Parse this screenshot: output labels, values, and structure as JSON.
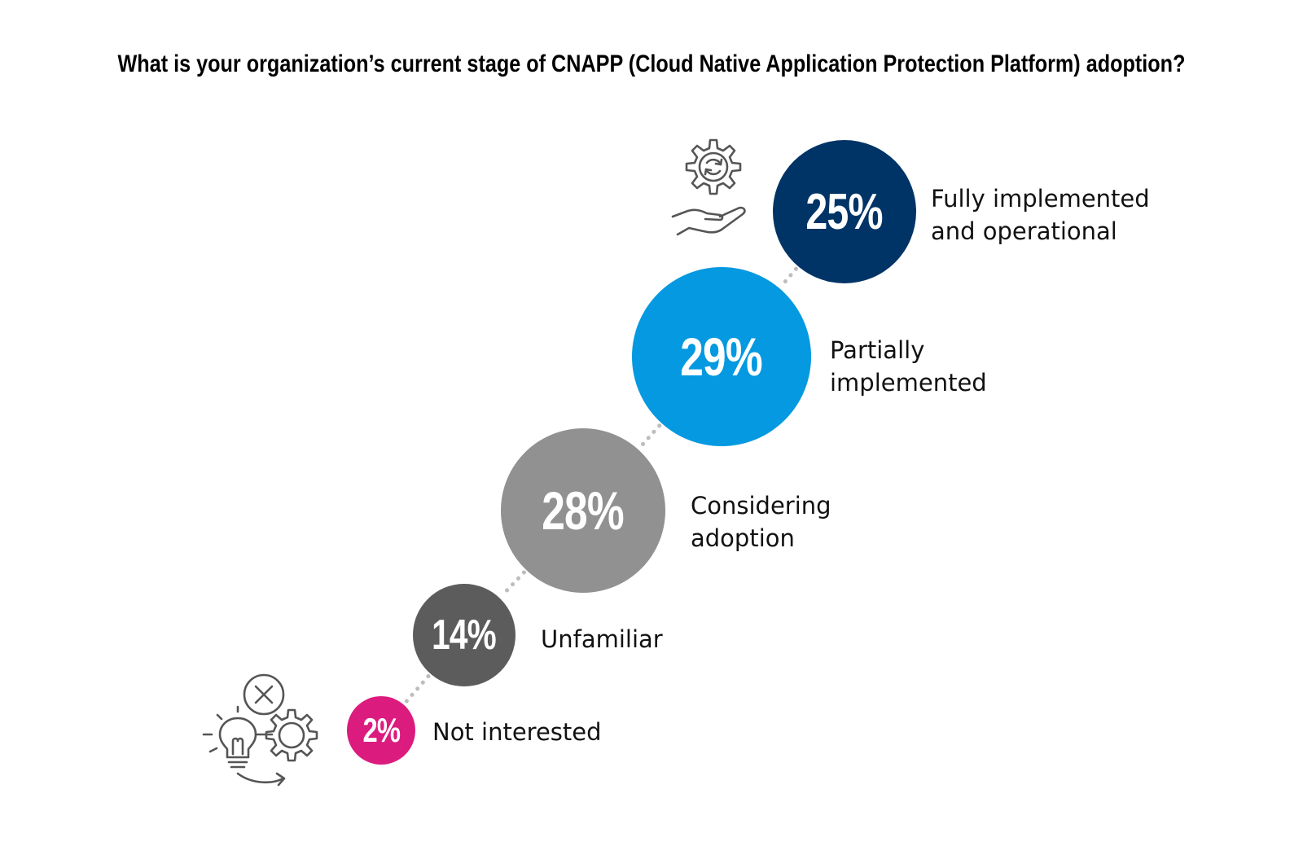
{
  "title": "What is your organization’s current stage of CNAPP (Cloud Native Application Protection Platform) adoption?",
  "chart_data": {
    "type": "bubble-steps",
    "title": "What is your organization’s current stage of CNAPP (Cloud Native Application Protection Platform) adoption?",
    "unit": "%",
    "categories": [
      "Fully implemented and operational",
      "Partially implemented",
      "Considering adoption",
      "Unfamiliar",
      "Not interested"
    ],
    "values": [
      25,
      29,
      28,
      14,
      2
    ],
    "items": [
      {
        "value": 25,
        "display": "25%",
        "label_lines": [
          "Fully implemented",
          "and operational"
        ],
        "color": "#003466"
      },
      {
        "value": 29,
        "display": "29%",
        "label_lines": [
          "Partially",
          "implemented"
        ],
        "color": "#0499e0"
      },
      {
        "value": 28,
        "display": "28%",
        "label_lines": [
          "Considering",
          "adoption"
        ],
        "color": "#919191"
      },
      {
        "value": 14,
        "display": "14%",
        "label_lines": [
          "Unfamiliar"
        ],
        "color": "#5c5c5c"
      },
      {
        "value": 2,
        "display": "2%",
        "label_lines": [
          "Not interested"
        ],
        "color": "#dc1b7e"
      }
    ],
    "connector_color": "#bdbdbd"
  },
  "icons": {
    "top": "gear-in-hand-icon",
    "bottom": "lightbulb-gear-cancel-icon"
  }
}
